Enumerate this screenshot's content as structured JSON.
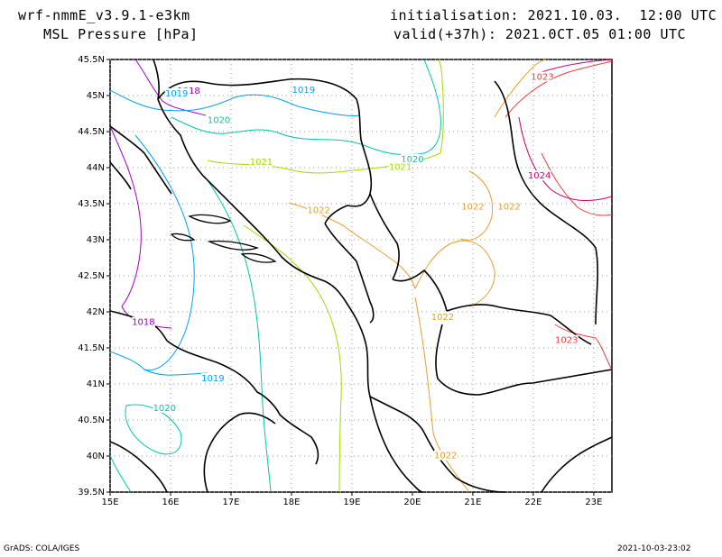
{
  "header": {
    "model": "wrf-nmmE_v3.9.1-e3km",
    "field": "MSL Pressure [hPa]",
    "init": "initialisation: 2021.10.03.  12:00 UTC",
    "valid": "valid(+37h): 2021.0CT.05 01:00 UTC"
  },
  "map": {
    "lon_ticks": [
      "15E",
      "16E",
      "17E",
      "18E",
      "19E",
      "20E",
      "21E",
      "22E",
      "23E"
    ],
    "lat_ticks": [
      "45.5N",
      "45N",
      "44.5N",
      "44N",
      "43.5N",
      "43N",
      "42.5N",
      "42N",
      "41.5N",
      "41N",
      "40.5N",
      "40N",
      "39.5N"
    ],
    "lon_range": [
      15,
      23.3
    ],
    "lat_range": [
      39.5,
      45.5
    ],
    "grid": "dotted",
    "contour_labels": [
      {
        "text": "1018",
        "lon": 16.3,
        "lat": 45.04,
        "color": "#a000c8"
      },
      {
        "text": "1019",
        "lon": 16.1,
        "lat": 45.0,
        "color": "#00a0ff"
      },
      {
        "text": "1019",
        "lon": 18.2,
        "lat": 45.05,
        "color": "#00a0ff"
      },
      {
        "text": "1020",
        "lon": 16.8,
        "lat": 44.63,
        "color": "#00c8aa"
      },
      {
        "text": "1020",
        "lon": 20.0,
        "lat": 44.09,
        "color": "#00c8aa"
      },
      {
        "text": "1021",
        "lon": 17.5,
        "lat": 44.05,
        "color": "#a0dc00"
      },
      {
        "text": "1021",
        "lon": 19.8,
        "lat": 43.98,
        "color": "#a0dc00"
      },
      {
        "text": "1022",
        "lon": 18.45,
        "lat": 43.38,
        "color": "#e6a02c"
      },
      {
        "text": "1022",
        "lon": 21.0,
        "lat": 43.43,
        "color": "#e6a02c"
      },
      {
        "text": "1022",
        "lon": 21.6,
        "lat": 43.43,
        "color": "#e6a02c"
      },
      {
        "text": "1022",
        "lon": 20.5,
        "lat": 41.9,
        "color": "#e6a02c"
      },
      {
        "text": "1022",
        "lon": 20.55,
        "lat": 39.98,
        "color": "#e6a02c"
      },
      {
        "text": "1023",
        "lon": 22.15,
        "lat": 45.23,
        "color": "#f03c3c"
      },
      {
        "text": "1023",
        "lon": 22.55,
        "lat": 41.58,
        "color": "#f03c3c"
      },
      {
        "text": "1024",
        "lon": 22.1,
        "lat": 43.86,
        "color": "#c8006e"
      },
      {
        "text": "1018",
        "lon": 15.55,
        "lat": 41.83,
        "color": "#a000c8"
      },
      {
        "text": "1019",
        "lon": 16.7,
        "lat": 41.05,
        "color": "#00a0ff"
      },
      {
        "text": "1020",
        "lon": 15.9,
        "lat": 40.64,
        "color": "#00c8aa"
      }
    ]
  },
  "footer": {
    "left": "GrADS: COLA/IGES",
    "right": "2021-10-03-23:02"
  }
}
